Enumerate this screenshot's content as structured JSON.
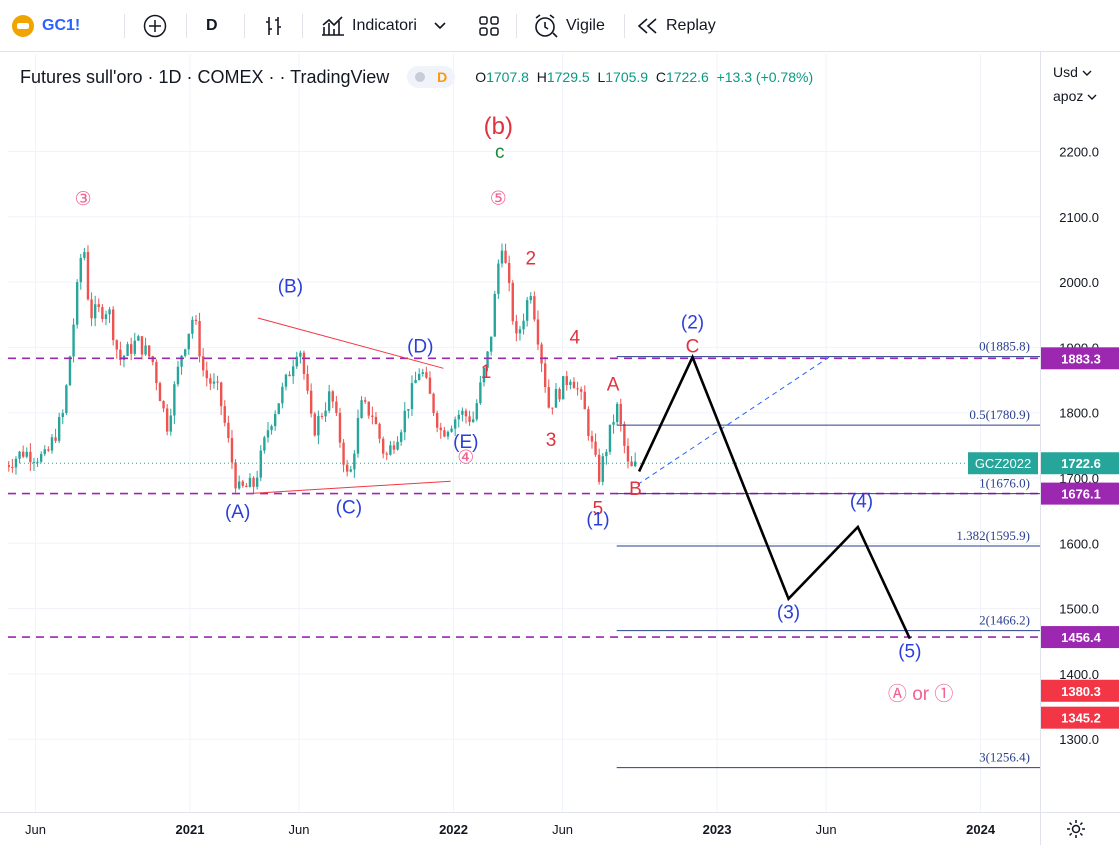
{
  "toolbar": {
    "symbol": "GC1!",
    "interval": "D",
    "indicators_label": "Indicatori",
    "alert_label": "Vigile",
    "replay_label": "Replay"
  },
  "legend": {
    "title": "Futures sull'oro · 1D · COMEX · · TradingView",
    "badge": "D",
    "open_label": "O",
    "open": "1707.8",
    "high_label": "H",
    "high": "1729.5",
    "low_label": "L",
    "low": "1705.9",
    "close_label": "C",
    "close": "1722.6",
    "change": "+13.3 (+0.78%)"
  },
  "price_axis": {
    "currency": "Usd",
    "mode": "apoz",
    "ticks": [
      "2200.0",
      "2100.0",
      "2000.0",
      "1900.0",
      "1800.0",
      "1700.0",
      "1600.0",
      "1500.0",
      "1400.0",
      "1300.0"
    ],
    "badges": [
      {
        "price": 1883.3,
        "text": "1883.3",
        "color": "#9c27b0"
      },
      {
        "price": 1722.6,
        "text": "1722.6",
        "color": "#26a69a"
      },
      {
        "price": 1676.1,
        "text": "1676.1",
        "color": "#9c27b0"
      },
      {
        "price": 1456.4,
        "text": "1456.4",
        "color": "#9c27b0"
      },
      {
        "price": 1380.3,
        "text": "1380.3",
        "color": "#f23645"
      },
      {
        "price": 1345.2,
        "text": "1345.2",
        "color": "#f23645"
      }
    ],
    "symbol_badge": "GCZ2022"
  },
  "time_axis": {
    "labels": [
      "Jun",
      "2021",
      "Jun",
      "2022",
      "Jun",
      "2023",
      "Jun",
      "2024"
    ]
  },
  "colors": {
    "up": "#26a69a",
    "down": "#ef5350",
    "blue_wave": "#2962ff",
    "red_wave": "#f23645",
    "pink_wave": "#f06292",
    "purple_line": "#9c27b0"
  },
  "chart_data": {
    "type": "candlestick",
    "title": "Futures sull'oro · 1D · COMEX",
    "ylim": [
      1200,
      2300
    ],
    "y_ticks": [
      1300,
      1400,
      1500,
      1600,
      1700,
      1800,
      1900,
      2000,
      2100,
      2200
    ],
    "x_range": [
      "2020-04-20",
      "2024-05-01"
    ],
    "close_price_path": [
      [
        "2020-04-20",
        1720
      ],
      [
        "2020-05-15",
        1740
      ],
      [
        "2020-06-15",
        1730
      ],
      [
        "2020-07-10",
        1800
      ],
      [
        "2020-07-25",
        1950
      ],
      [
        "2020-08-06",
        2070
      ],
      [
        "2020-08-15",
        1950
      ],
      [
        "2020-09-10",
        1960
      ],
      [
        "2020-09-25",
        1880
      ],
      [
        "2020-10-20",
        1910
      ],
      [
        "2020-11-10",
        1880
      ],
      [
        "2020-11-30",
        1780
      ],
      [
        "2020-12-20",
        1890
      ],
      [
        "2021-01-06",
        1950
      ],
      [
        "2021-01-20",
        1860
      ],
      [
        "2021-02-10",
        1830
      ],
      [
        "2021-03-08",
        1680
      ],
      [
        "2021-03-31",
        1690
      ],
      [
        "2021-04-20",
        1780
      ],
      [
        "2021-05-15",
        1850
      ],
      [
        "2021-06-01",
        1910
      ],
      [
        "2021-06-20",
        1770
      ],
      [
        "2021-07-15",
        1830
      ],
      [
        "2021-08-09",
        1690
      ],
      [
        "2021-08-25",
        1810
      ],
      [
        "2021-09-10",
        1800
      ],
      [
        "2021-09-29",
        1730
      ],
      [
        "2021-10-20",
        1780
      ],
      [
        "2021-11-16",
        1870
      ],
      [
        "2021-12-15",
        1770
      ],
      [
        "2022-01-10",
        1800
      ],
      [
        "2022-01-28",
        1790
      ],
      [
        "2022-02-20",
        1900
      ],
      [
        "2022-03-08",
        2070
      ],
      [
        "2022-03-29",
        1910
      ],
      [
        "2022-04-18",
        1990
      ],
      [
        "2022-05-13",
        1810
      ],
      [
        "2022-06-13",
        1860
      ],
      [
        "2022-06-30",
        1810
      ],
      [
        "2022-07-21",
        1700
      ],
      [
        "2022-08-15",
        1810
      ],
      [
        "2022-09-01",
        1710
      ],
      [
        "2022-09-13",
        1720
      ]
    ],
    "last_price": 1722.6,
    "horizontal_levels": [
      {
        "price": 1883.3,
        "style": "dashed"
      },
      {
        "price": 1676.1,
        "style": "dashed"
      },
      {
        "price": 1456.4,
        "style": "dashed"
      }
    ],
    "fibonacci": [
      {
        "label": "0(1885.8)",
        "price": 1885.8
      },
      {
        "label": "0.5(1780.9)",
        "price": 1780.9
      },
      {
        "label": "1(1676.0)",
        "price": 1676.0
      },
      {
        "label": "1.382(1595.9)",
        "price": 1595.9
      },
      {
        "label": "2(1466.2)",
        "price": 1466.2
      },
      {
        "label": "3(1256.4)",
        "price": 1256.4
      }
    ],
    "projection_path": [
      [
        "2022-09-15",
        1710
      ],
      [
        "2022-11-28",
        1885
      ],
      [
        "2023-04-10",
        1515
      ],
      [
        "2023-07-15",
        1625
      ],
      [
        "2023-09-25",
        1454
      ]
    ],
    "wave_labels": [
      {
        "text": "③",
        "date": "2020-08-06",
        "price": 2118,
        "color": "pink"
      },
      {
        "text": "(b)",
        "date": "2022-03-04",
        "price": 2227,
        "color": "red"
      },
      {
        "text": "c",
        "date": "2022-03-06",
        "price": 2190,
        "color": "green"
      },
      {
        "text": "⑤",
        "date": "2022-03-04",
        "price": 2119,
        "color": "pink"
      },
      {
        "text": "(B)",
        "date": "2021-05-20",
        "price": 1984,
        "color": "blue"
      },
      {
        "text": "(D)",
        "date": "2021-11-16",
        "price": 1892,
        "color": "blue"
      },
      {
        "text": "(E)",
        "date": "2022-01-18",
        "price": 1746,
        "color": "blue"
      },
      {
        "text": "④",
        "date": "2022-01-18",
        "price": 1722,
        "color": "pink"
      },
      {
        "text": "(A)",
        "date": "2021-03-08",
        "price": 1639,
        "color": "blue"
      },
      {
        "text": "(C)",
        "date": "2021-08-09",
        "price": 1646,
        "color": "blue"
      },
      {
        "text": "1",
        "date": "2022-02-15",
        "price": 1853,
        "color": "red"
      },
      {
        "text": "2",
        "date": "2022-04-18",
        "price": 2027,
        "color": "red"
      },
      {
        "text": "3",
        "date": "2022-05-16",
        "price": 1749,
        "color": "red"
      },
      {
        "text": "4",
        "date": "2022-06-18",
        "price": 1906,
        "color": "red"
      },
      {
        "text": "5",
        "date": "2022-07-20",
        "price": 1644,
        "color": "red"
      },
      {
        "text": "A",
        "date": "2022-08-10",
        "price": 1834,
        "color": "red"
      },
      {
        "text": "B",
        "date": "2022-09-10",
        "price": 1674,
        "color": "red"
      },
      {
        "text": "(1)",
        "date": "2022-07-20",
        "price": 1627,
        "color": "blue"
      },
      {
        "text": "(2)",
        "date": "2022-11-28",
        "price": 1929,
        "color": "blue"
      },
      {
        "text": "C",
        "date": "2022-11-28",
        "price": 1892,
        "color": "red"
      },
      {
        "text": "(3)",
        "date": "2023-04-10",
        "price": 1485,
        "color": "blue"
      },
      {
        "text": "(4)",
        "date": "2023-07-20",
        "price": 1655,
        "color": "blue"
      },
      {
        "text": "(5)",
        "date": "2023-09-25",
        "price": 1425,
        "color": "blue"
      },
      {
        "text": "Ⓐ or ①",
        "date": "2023-10-10",
        "price": 1360,
        "color": "pink"
      }
    ],
    "triangle_lines": [
      [
        [
          "2021-04-05",
          1945
        ],
        [
          "2021-12-18",
          1868
        ]
      ],
      [
        [
          "2021-03-20",
          1676
        ],
        [
          "2021-12-28",
          1695
        ]
      ]
    ]
  }
}
